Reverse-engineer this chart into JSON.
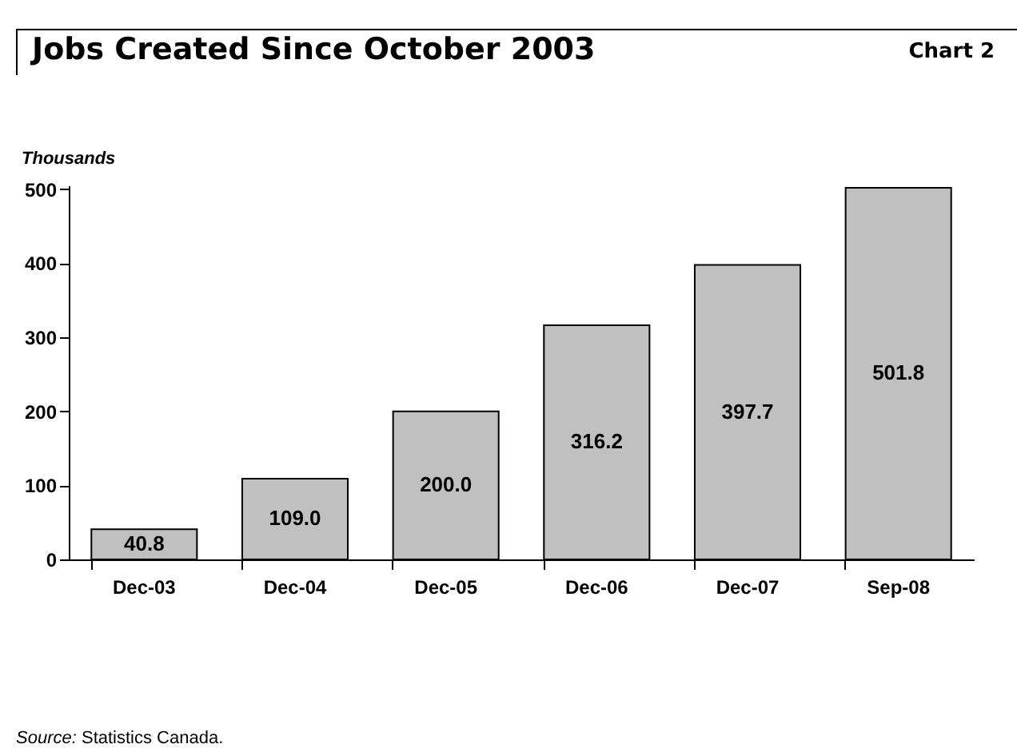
{
  "chart_data": {
    "type": "bar",
    "title": "Jobs Created Since October 2003",
    "subtitle": "Chart 2",
    "ylabel": "Thousands",
    "categories": [
      "Dec-03",
      "Dec-04",
      "Dec-05",
      "Dec-06",
      "Dec-07",
      "Sep-08"
    ],
    "values": [
      40.8,
      109.0,
      200.0,
      316.2,
      397.7,
      501.8
    ],
    "value_labels": [
      "40.8",
      "109.0",
      "200.0",
      "316.2",
      "397.7",
      "501.8"
    ],
    "color": "#c0c0c0",
    "ylim": [
      0,
      505
    ],
    "yticks": [
      0,
      100,
      200,
      300,
      400,
      500
    ],
    "grid": false,
    "legend": false,
    "annotations": [
      "Source: Statistics Canada."
    ]
  }
}
